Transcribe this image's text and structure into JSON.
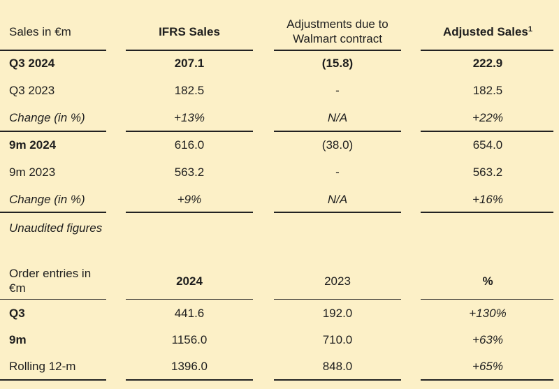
{
  "sales_table": {
    "headers": {
      "label": "Sales in €m",
      "ifrs": "IFRS Sales",
      "adjustments": "Adjustments due to Walmart contract",
      "adjusted": "Adjusted Sales",
      "adjusted_footnote": "1"
    },
    "rows": [
      {
        "label": "Q3 2024",
        "ifrs": "207.1",
        "adjustments": "(15.8)",
        "adjusted": "222.9"
      },
      {
        "label": "Q3 2023",
        "ifrs": "182.5",
        "adjustments": "-",
        "adjusted": "182.5"
      },
      {
        "label": "Change (in %)",
        "ifrs": "+13%",
        "adjustments": "N/A",
        "adjusted": "+22%"
      },
      {
        "label": "9m 2024",
        "ifrs": "616.0",
        "adjustments": "(38.0)",
        "adjusted": "654.0"
      },
      {
        "label": "9m 2023",
        "ifrs": "563.2",
        "adjustments": "-",
        "adjusted": "563.2"
      },
      {
        "label": "Change (in %)",
        "ifrs": "+9%",
        "adjustments": "N/A",
        "adjusted": "+16%"
      }
    ],
    "note": "Unaudited figures"
  },
  "orders_table": {
    "headers": {
      "label": "Order entries in €m",
      "y2024": "2024",
      "y2023": "2023",
      "pct": "%"
    },
    "rows": [
      {
        "label": "Q3",
        "y2024": "441.6",
        "y2023": "192.0",
        "pct": "+130%"
      },
      {
        "label": "9m",
        "y2024": "1156.0",
        "y2023": "710.0",
        "pct": "+63%"
      },
      {
        "label": "Rolling 12-m",
        "y2024": "1396.0",
        "y2023": "848.0",
        "pct": "+65%"
      }
    ]
  },
  "colors": {
    "background": "#fcf0c7",
    "text": "#1e1e1e",
    "rule": "#222222"
  }
}
